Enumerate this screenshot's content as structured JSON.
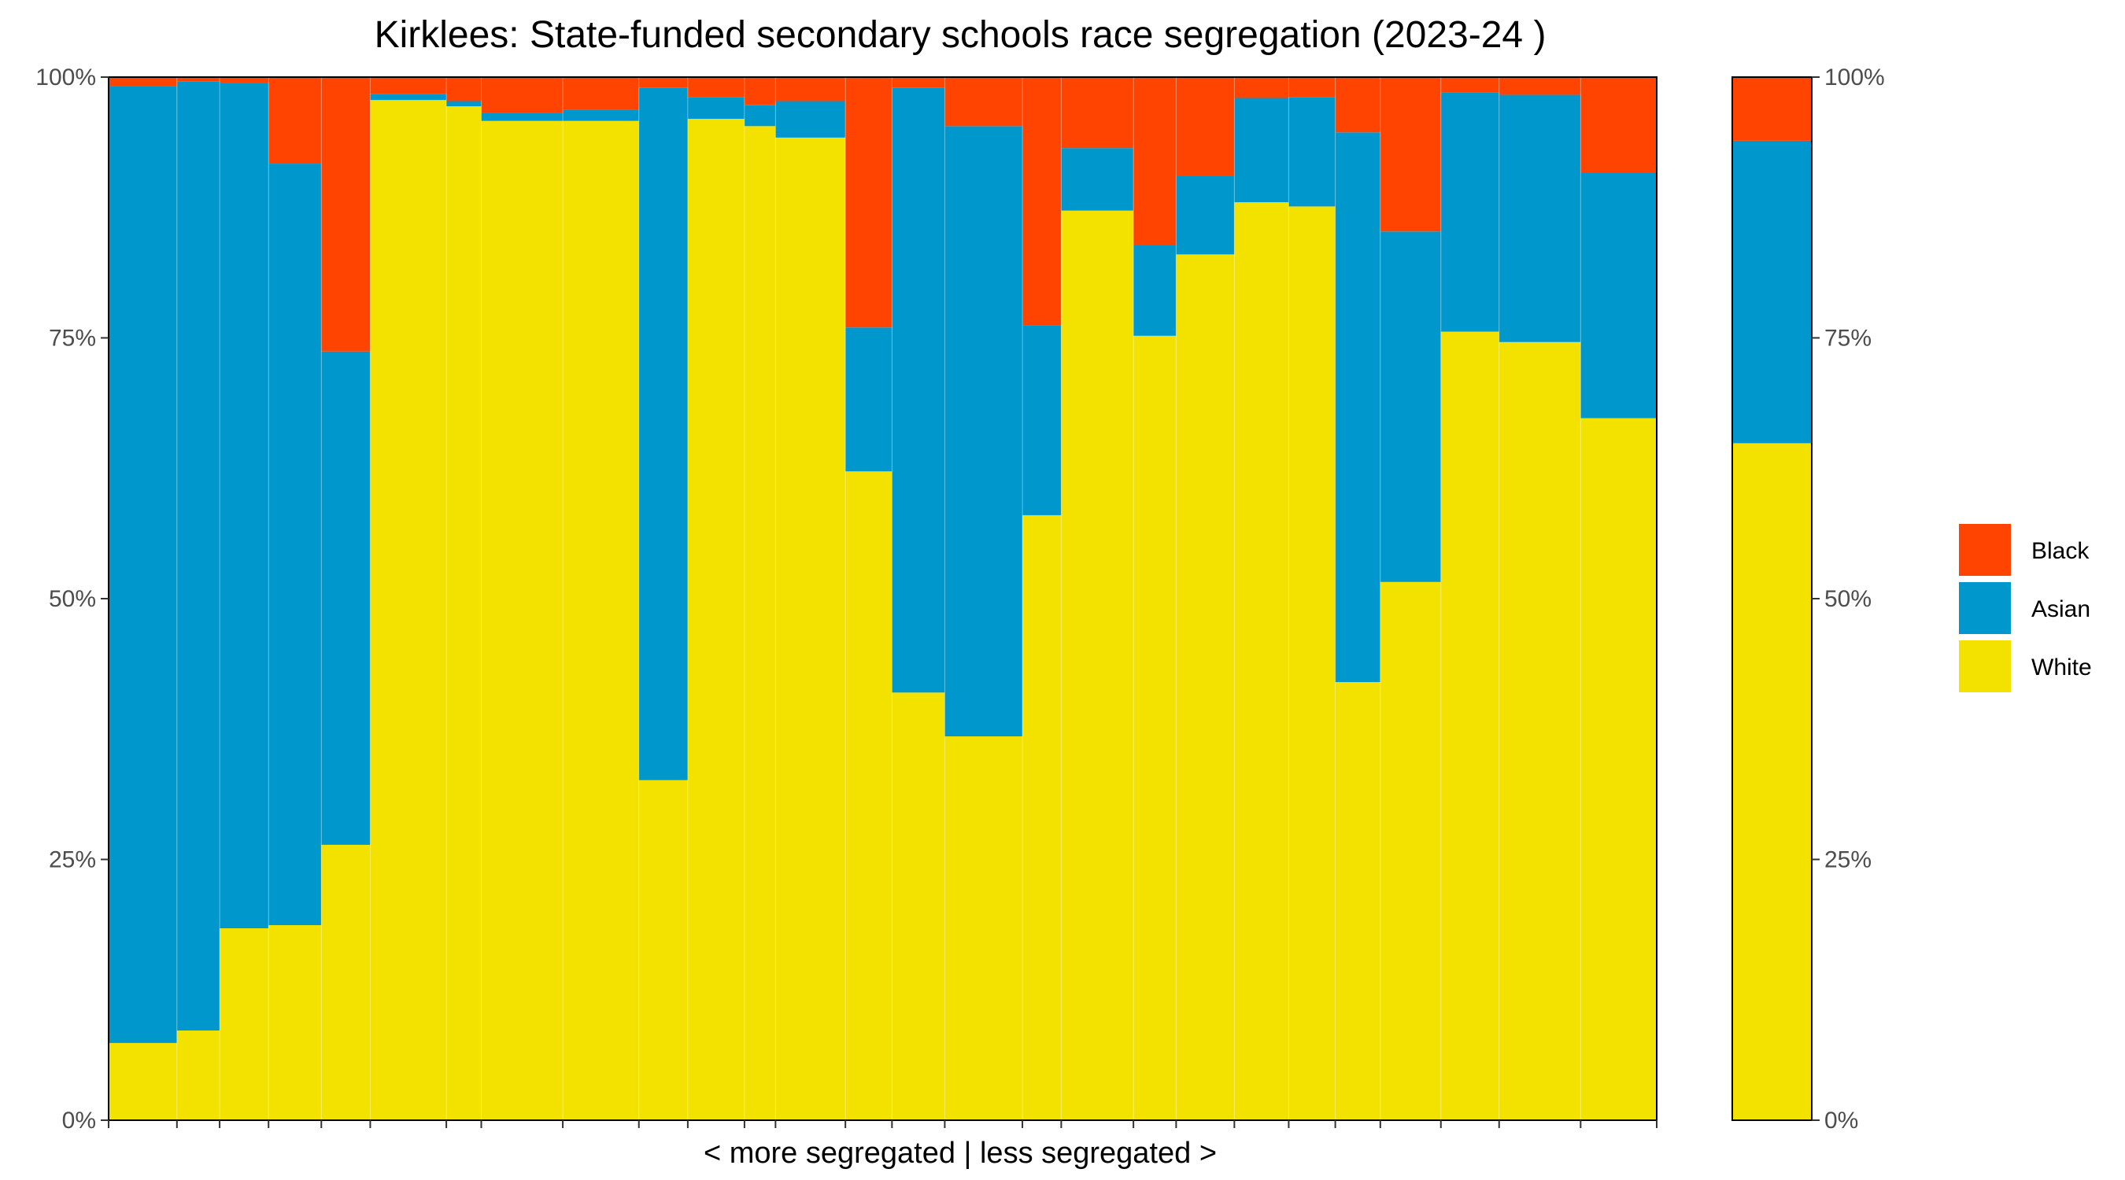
{
  "chart_data": {
    "type": "bar",
    "stacked": true,
    "orientation": "vertical",
    "title": "Kirklees: State-funded secondary schools race segregation (2023-24 )",
    "xlabel": "< more segregated | less segregated >",
    "ylabel": "",
    "ylim": [
      0,
      1
    ],
    "y_ticks": [
      "0%",
      "25%",
      "50%",
      "75%",
      "100%"
    ],
    "grid": false,
    "legend": {
      "position": "right",
      "order": [
        "Black",
        "Asian",
        "White"
      ]
    },
    "colors": {
      "White": "#f3e200",
      "Asian": "#0098cc",
      "Black": "#ff4300"
    },
    "schools": [
      {
        "width": 0.88,
        "white": 0.074,
        "asian": 0.917,
        "black": 0.009
      },
      {
        "width": 0.55,
        "white": 0.086,
        "asian": 0.91,
        "black": 0.004
      },
      {
        "width": 0.63,
        "white": 0.184,
        "asian": 0.81,
        "black": 0.006
      },
      {
        "width": 0.68,
        "white": 0.187,
        "asian": 0.73,
        "black": 0.083
      },
      {
        "width": 0.63,
        "white": 0.264,
        "asian": 0.473,
        "black": 0.263
      },
      {
        "width": 0.98,
        "white": 0.978,
        "asian": 0.006,
        "black": 0.016
      },
      {
        "width": 0.45,
        "white": 0.972,
        "asian": 0.005,
        "black": 0.023
      },
      {
        "width": 1.05,
        "white": 0.958,
        "asian": 0.008,
        "black": 0.034
      },
      {
        "width": 0.98,
        "white": 0.958,
        "asian": 0.011,
        "black": 0.031
      },
      {
        "width": 0.63,
        "white": 0.326,
        "asian": 0.664,
        "black": 0.01
      },
      {
        "width": 0.73,
        "white": 0.96,
        "asian": 0.021,
        "black": 0.019
      },
      {
        "width": 0.4,
        "white": 0.953,
        "asian": 0.02,
        "black": 0.027
      },
      {
        "width": 0.9,
        "white": 0.942,
        "asian": 0.035,
        "black": 0.023
      },
      {
        "width": 0.6,
        "white": 0.622,
        "asian": 0.138,
        "black": 0.24
      },
      {
        "width": 0.68,
        "white": 0.41,
        "asian": 0.58,
        "black": 0.01
      },
      {
        "width": 1.0,
        "white": 0.368,
        "asian": 0.585,
        "black": 0.047
      },
      {
        "width": 0.5,
        "white": 0.58,
        "asian": 0.182,
        "black": 0.238
      },
      {
        "width": 0.93,
        "white": 0.872,
        "asian": 0.06,
        "black": 0.068
      },
      {
        "width": 0.55,
        "white": 0.752,
        "asian": 0.087,
        "black": 0.161
      },
      {
        "width": 0.75,
        "white": 0.83,
        "asian": 0.075,
        "black": 0.095
      },
      {
        "width": 0.7,
        "white": 0.88,
        "asian": 0.1,
        "black": 0.02
      },
      {
        "width": 0.6,
        "white": 0.876,
        "asian": 0.105,
        "black": 0.019
      },
      {
        "width": 0.58,
        "white": 0.42,
        "asian": 0.527,
        "black": 0.053
      },
      {
        "width": 0.78,
        "white": 0.516,
        "asian": 0.336,
        "black": 0.148
      },
      {
        "width": 0.75,
        "white": 0.756,
        "asian": 0.229,
        "black": 0.015
      },
      {
        "width": 1.05,
        "white": 0.746,
        "asian": 0.237,
        "black": 0.017
      },
      {
        "width": 0.98,
        "white": 0.673,
        "asian": 0.235,
        "black": 0.092
      }
    ],
    "overall": {
      "white": 0.649,
      "asian": 0.29,
      "black": 0.061
    }
  }
}
